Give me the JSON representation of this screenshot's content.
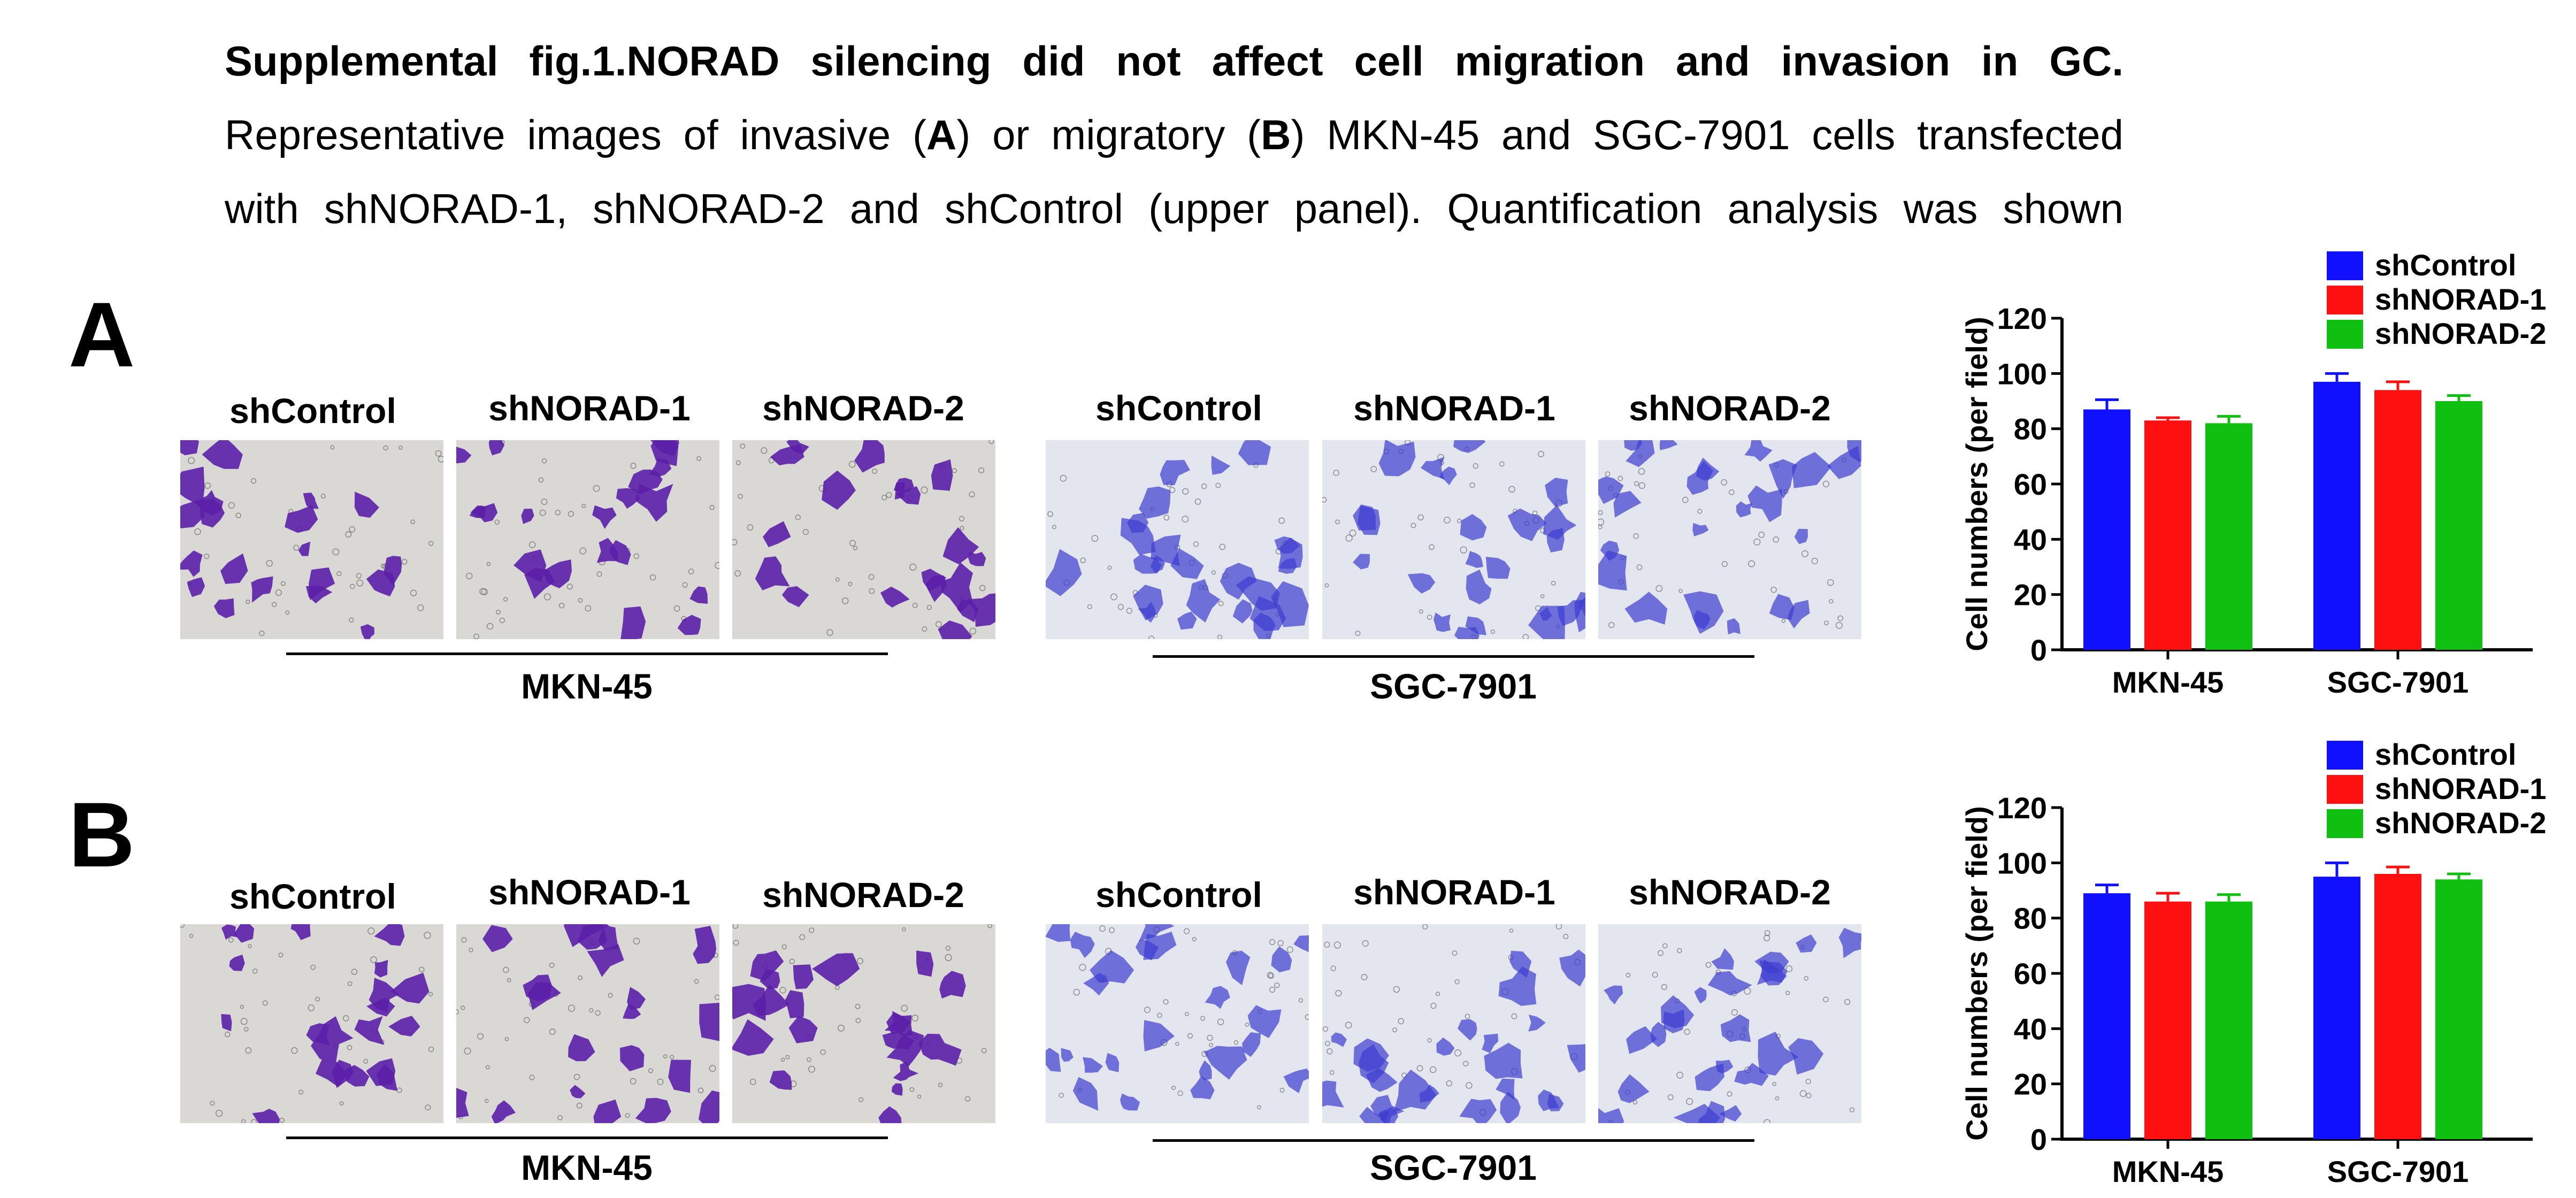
{
  "caption": {
    "title": "Supplemental fig.1.NORAD silencing did not affect cell migration and invasion in GC.",
    "line2_a": "Representative images of invasive (",
    "line2_A": "A",
    "line2_b": ") or migratory (",
    "line2_B": "B",
    "line2_c": ") MKN-45 and SGC-7901 cells transfected",
    "line3": "with shNORAD-1, shNORAD-2 and shControl (upper panel). Quantification analysis was shown"
  },
  "panels": [
    {
      "letter": "A",
      "image_labels": [
        "shControl",
        "shNORAD-1",
        "shNORAD-2",
        "shControl",
        "shNORAD-1",
        "shNORAD-2"
      ],
      "groups": [
        "MKN-45",
        "SGC-7901"
      ]
    },
    {
      "letter": "B",
      "image_labels": [
        "shControl",
        "shNORAD-1",
        "shNORAD-2",
        "shControl",
        "shNORAD-1",
        "shNORAD-2"
      ],
      "groups": [
        "MKN-45",
        "SGC-7901"
      ]
    }
  ],
  "colors": {
    "shControl": "#1010ff",
    "shNORAD-1": "#ff1010",
    "shNORAD-2": "#10c010",
    "violet_cell": "#5b1fa8",
    "blue_cell": "#3c3cd0"
  },
  "chart_data": [
    {
      "type": "bar",
      "panel": "A",
      "title": "",
      "ylabel": "Cell numbers (per field)",
      "xlabel": "",
      "ylim": [
        0,
        120
      ],
      "yticks": [
        0,
        20,
        40,
        60,
        80,
        100,
        120
      ],
      "categories": [
        "MKN-45",
        "SGC-7901"
      ],
      "series": [
        {
          "name": "shControl",
          "values": [
            87,
            97
          ],
          "errors": [
            3.5,
            3
          ]
        },
        {
          "name": "shNORAD-1",
          "values": [
            83,
            94
          ],
          "errors": [
            1,
            3
          ]
        },
        {
          "name": "shNORAD-2",
          "values": [
            82,
            90
          ],
          "errors": [
            2.5,
            2
          ]
        }
      ],
      "legend_position": "top-right"
    },
    {
      "type": "bar",
      "panel": "B",
      "title": "",
      "ylabel": "Cell numbers (per field)",
      "xlabel": "",
      "ylim": [
        0,
        120
      ],
      "yticks": [
        0,
        20,
        40,
        60,
        80,
        100,
        120
      ],
      "categories": [
        "MKN-45",
        "SGC-7901"
      ],
      "series": [
        {
          "name": "shControl",
          "values": [
            89,
            95
          ],
          "errors": [
            3,
            5
          ]
        },
        {
          "name": "shNORAD-1",
          "values": [
            86,
            96
          ],
          "errors": [
            3,
            2.5
          ]
        },
        {
          "name": "shNORAD-2",
          "values": [
            86,
            94
          ],
          "errors": [
            2.5,
            2
          ]
        }
      ],
      "legend_position": "top-right"
    }
  ]
}
